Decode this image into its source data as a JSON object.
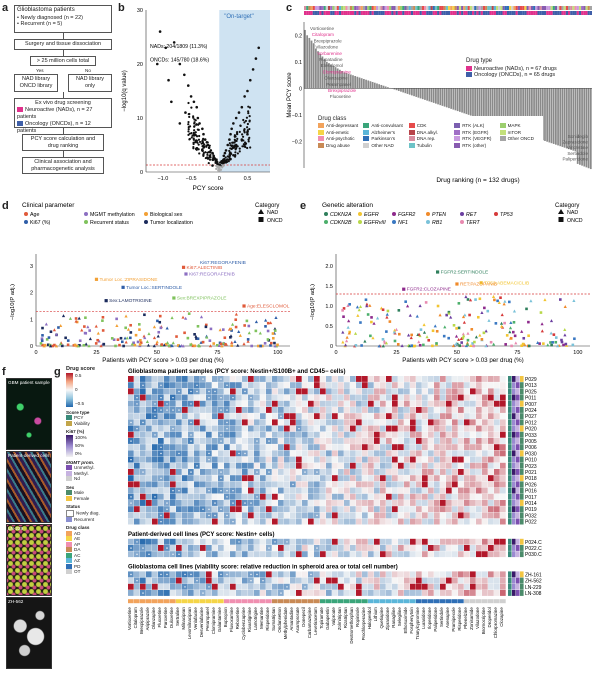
{
  "panel_a": {
    "letter": "a",
    "title": "Glioblastoma patients",
    "bullets": [
      "Newly diagnosed (n = 22)",
      "Recurrent (n = 5)"
    ],
    "step1": "Surgery and tissue dissociation",
    "step2": "> 25 million cells total",
    "yes": "Yes",
    "no": "No",
    "branch_yes": "NAD library ONCD library",
    "branch_no": "NAD library only",
    "screen_title": "Ex vivo drug screening",
    "screen_nad": "Neuroactive (NADs), n = 27 patients",
    "screen_oncd": "Oncology (ONCDs), n = 12 patients",
    "step4": "PCY score calculation and drug ranking",
    "step5": "Clinical association and pharmacogenetic analysis",
    "colors": {
      "nad": "#e0318c",
      "oncd": "#3f5fa8"
    }
  },
  "panel_b": {
    "letter": "b",
    "annotation_nads": "NADs: 204/1809 (11.3%)",
    "annotation_oncds": "ONCDs: 145/780 (18.6%)",
    "on_target": "\"On-target\"",
    "chart_data": {
      "type": "scatter",
      "xlabel": "PCY score",
      "ylabel": "−log10(q value)",
      "xlim": [
        -1.3,
        0.9
      ],
      "ylim": [
        0,
        30
      ],
      "xticks": [
        "−1.0",
        "−0.5",
        "0",
        "0.5"
      ],
      "yticks": [
        "0",
        "10",
        "20",
        "30"
      ],
      "points": [
        [
          -1.05,
          26
        ],
        [
          -0.95,
          23
        ],
        [
          -0.8,
          24
        ],
        [
          -0.7,
          20
        ],
        [
          -0.62,
          18
        ],
        [
          -0.55,
          16
        ],
        [
          -0.5,
          14
        ],
        [
          -0.45,
          13
        ],
        [
          -0.4,
          12
        ],
        [
          -0.38,
          10
        ],
        [
          -0.35,
          9
        ],
        [
          -0.3,
          8
        ],
        [
          -0.28,
          7
        ],
        [
          -0.25,
          6
        ],
        [
          -0.22,
          5.5
        ],
        [
          -0.2,
          5
        ],
        [
          -0.18,
          4.5
        ],
        [
          -0.15,
          4
        ],
        [
          -0.12,
          3.5
        ],
        [
          -0.1,
          3
        ],
        [
          -0.08,
          2.5
        ],
        [
          -0.05,
          2
        ],
        [
          -0.03,
          1.5
        ],
        [
          -0.01,
          1
        ],
        [
          0.02,
          1.2
        ],
        [
          0.05,
          2
        ],
        [
          0.08,
          3
        ],
        [
          0.1,
          3.5
        ],
        [
          0.12,
          4
        ],
        [
          0.15,
          5
        ],
        [
          0.18,
          6
        ],
        [
          0.2,
          7
        ],
        [
          0.22,
          8
        ],
        [
          0.25,
          9
        ],
        [
          0.3,
          10
        ],
        [
          0.35,
          11
        ],
        [
          0.4,
          12
        ],
        [
          0.45,
          14
        ],
        [
          0.5,
          15
        ],
        [
          0.55,
          17
        ],
        [
          0.6,
          19
        ],
        [
          0.65,
          21
        ],
        [
          0.7,
          23
        ],
        [
          -0.6,
          11
        ],
        [
          -0.7,
          9
        ],
        [
          -0.85,
          13
        ],
        [
          -0.9,
          17
        ],
        [
          -1.1,
          20
        ],
        [
          -0.3,
          4
        ],
        [
          -0.2,
          2.5
        ],
        [
          0.3,
          5
        ],
        [
          0.4,
          6
        ],
        [
          0.5,
          7
        ],
        [
          0.1,
          1.8
        ],
        [
          -0.12,
          1.2
        ],
        [
          0.2,
          2.4
        ]
      ],
      "threshold_y": 1.3
    }
  },
  "panel_c": {
    "letter": "c",
    "chart_data": {
      "type": "bar",
      "ylabel": "Mean PCY score",
      "xlabel": "Drug ranking (n = 132 drugs)",
      "ylim": [
        -0.3,
        0.25
      ],
      "yticks": [
        "−0.2",
        "−0.1",
        "0",
        "0.1",
        "0.2"
      ],
      "n_bars": 132,
      "top_values": [
        0.22,
        0.2,
        0.19,
        0.18,
        0.17,
        0.15,
        0.14,
        0.13,
        0.12,
        0.11,
        0.1,
        0.095,
        0.09,
        0.085,
        0.08,
        0.075,
        0.07,
        0.065,
        0.06,
        0.058
      ],
      "labels_top": [
        "Vortioxetine",
        "Citalopram",
        "Brexpiprazole",
        "Vilazodone",
        "Vorbarenine",
        "Rupatadine",
        "Elesclomol",
        "Clomipramine",
        "Olanzapine",
        "Perampanel",
        "Brexpiprazole",
        "Fluoxetine"
      ],
      "labels_bottom": [
        "Sonidegib",
        "Zaprasidone",
        "Vincristine",
        "Sertindole",
        "Paliperidone"
      ]
    },
    "legend_type_title": "Drug type",
    "legend_types": [
      {
        "label": "Neuroactive (NADs), n = 67 drugs",
        "color": "#e0318c"
      },
      {
        "label": "Oncology (ONCDs), n = 65 drugs",
        "color": "#3f5fa8"
      }
    ],
    "drug_class_title": "Drug class",
    "drug_classes": [
      {
        "label": "Anti-depressant",
        "color": "#f2a35c"
      },
      {
        "label": "Anti-convulsant",
        "color": "#3aa57a"
      },
      {
        "label": "CDK",
        "color": "#e64b4b"
      },
      {
        "label": "RTK (ALK)",
        "color": "#7b5fb0"
      },
      {
        "label": "MAPK",
        "color": "#9ccf6e"
      },
      {
        "label": "Anti-emetic",
        "color": "#f5d547"
      },
      {
        "label": "Alzheimer's",
        "color": "#5bb6d9"
      },
      {
        "label": "DNA alkyl.",
        "color": "#b8454b"
      },
      {
        "label": "RTK (EGFR)",
        "color": "#a06fc6"
      },
      {
        "label": "mTOR",
        "color": "#c3e07b"
      },
      {
        "label": "Anti-psychotic",
        "color": "#f08fb0"
      },
      {
        "label": "Parkinson's",
        "color": "#2f6fb6"
      },
      {
        "label": "DNA rep.",
        "color": "#d98da0"
      },
      {
        "label": "RTK (VEGFR)",
        "color": "#c89ae0"
      },
      {
        "label": "Other ONCD",
        "color": "#a5a5a5"
      },
      {
        "label": "Drug abuse",
        "color": "#c98a55"
      },
      {
        "label": "Other NAD",
        "color": "#d0d0d0"
      },
      {
        "label": "Tubulin",
        "color": "#6dc3c7"
      },
      {
        "label": "RTK (other)",
        "color": "#875bb0"
      }
    ]
  },
  "panel_d": {
    "letter": "d",
    "legend_title": "Clinical parameter",
    "params": [
      {
        "label": "Age",
        "color": "#e05a3a"
      },
      {
        "label": "MGMT methylation",
        "color": "#8c6fc2"
      },
      {
        "label": "Biological sex",
        "color": "#f2a035"
      },
      {
        "label": "Ki67 (%)",
        "color": "#2f5ea8"
      },
      {
        "label": "Recurrent status",
        "color": "#7fc25c"
      },
      {
        "label": "Tumor localization",
        "color": "#1b2b5c"
      }
    ],
    "category_title": "Category",
    "cat_nad": "NAD",
    "cat_oncd": "ONCD",
    "annotations": [
      "Ki67:ALECTINIB",
      "Ki67:REGORAFENIB",
      "Tumor Loc.:ZIPRASIDONE",
      "Tumor Loc.:SERTINDOLE",
      "Sex:BREXPIPRAZOLE",
      "Sex:LAMOTRIGINE",
      "Age:ELESCLOMOL"
    ],
    "chart_data": {
      "type": "scatter",
      "xlabel": "Patients with PCY score > 0.03 per drug (%)",
      "ylabel": "−log10(P adj.)",
      "xlim": [
        0,
        105
      ],
      "ylim": [
        0,
        3.3
      ],
      "xticks": [
        "0",
        "25",
        "50",
        "75",
        "100"
      ],
      "yticks": [
        "0",
        "1",
        "2",
        "3"
      ],
      "threshold_y": 1.3,
      "highlights": [
        [
          61,
          2.95
        ],
        [
          62,
          2.7
        ],
        [
          25,
          2.5
        ],
        [
          36,
          2.2
        ],
        [
          57,
          1.8
        ],
        [
          29,
          1.7
        ],
        [
          86,
          1.5
        ]
      ]
    }
  },
  "panel_e": {
    "letter": "e",
    "legend_title": "Genetic alteration",
    "genes": [
      {
        "label": "CDKN2A",
        "color": "#2f7f5c"
      },
      {
        "label": "EGFR",
        "color": "#f2c531"
      },
      {
        "label": "FGFR2",
        "color": "#8e2a8c"
      },
      {
        "label": "PTEN",
        "color": "#f08a2a"
      },
      {
        "label": "RET",
        "color": "#6b3fa0"
      },
      {
        "label": "TP53",
        "color": "#d63a3a"
      },
      {
        "label": "CDKN2B",
        "color": "#4caf6b"
      },
      {
        "label": "EGFRvIII",
        "color": "#b8d84a"
      },
      {
        "label": "NF1",
        "color": "#3a78c2"
      },
      {
        "label": "RB1",
        "color": "#7ac2d9"
      },
      {
        "label": "TERT",
        "color": "#e88ab0"
      }
    ],
    "category_title": "Category",
    "cat_nad": "NAD",
    "cat_oncd": "ONCD",
    "annotations": [
      "FGFR2:SERTINDOLE",
      "TP53:ABEMACICLIB",
      "FGFR2:CLOZAPINE",
      "RET:PAZOPANIB"
    ],
    "chart_data": {
      "type": "scatter",
      "xlabel": "Patients with PCY score > 0.03 per drug (%)",
      "ylabel": "−log10(P adj.)",
      "xlim": [
        0,
        105
      ],
      "ylim": [
        0,
        2.2
      ],
      "xticks": [
        "0",
        "25",
        "50",
        "75",
        "100"
      ],
      "yticks": [
        "0",
        "0.5",
        "1.0",
        "1.5",
        "2.0"
      ],
      "threshold_y": 1.3,
      "highlights": [
        [
          42,
          1.85
        ],
        [
          60,
          1.58
        ],
        [
          28,
          1.42
        ],
        [
          50,
          1.55
        ]
      ]
    }
  },
  "panel_f": {
    "letter": "f",
    "labels": [
      "GBM patient sample",
      "Patient-derived cells",
      "LN-229",
      "ZH-562"
    ]
  },
  "panel_g": {
    "letter": "g",
    "title_patients": "Glioblastoma patient samples (PCY score: Nestin+/S100B+ and CD45− cells)",
    "title_cells": "Patient-derived cell lines (PCY score: Nestin+ cells)",
    "title_lines": "Glioblastoma cell lines (viability score: relative reduction in spheroid area or total cell number)",
    "drug_score_title": "Drug score",
    "drug_score_ticks": [
      "0.5",
      "0",
      "−0.5"
    ],
    "score_type_title": "Score type",
    "score_types": [
      {
        "label": "PCY",
        "color": "#3a8a7a"
      },
      {
        "label": "Viability",
        "color": "#c2a54a"
      }
    ],
    "ki67_title": "Ki67 (%)",
    "ki67_ticks": [
      "100%",
      "50%",
      "0%"
    ],
    "mgmt_title": "MGMT prom.",
    "mgmt": [
      {
        "label": "Unmethyl.",
        "color": "#7c4fb0"
      },
      {
        "label": "Methyl.",
        "color": "#c6b2e0"
      },
      {
        "label": "Nd",
        "color": "#cfcfcf"
      }
    ],
    "sex_title": "Sex",
    "sex": [
      {
        "label": "Male",
        "color": "#4b8b6a"
      },
      {
        "label": "Female",
        "color": "#f2c542"
      }
    ],
    "status_title": "Status",
    "status": [
      {
        "label": "Newly diag.",
        "color": "#ffffff"
      },
      {
        "label": "Recurrent",
        "color": "#8a8fd0"
      }
    ],
    "class_title": "Drug class",
    "classes": [
      {
        "label": "AD",
        "color": "#f2a35c"
      },
      {
        "label": "AE",
        "color": "#f5d547"
      },
      {
        "label": "AP",
        "color": "#f08fb0"
      },
      {
        "label": "DA",
        "color": "#c98a55"
      },
      {
        "label": "AC",
        "color": "#3aa57a"
      },
      {
        "label": "AZ",
        "color": "#5bb6d9"
      },
      {
        "label": "PD",
        "color": "#2f6fb6"
      },
      {
        "label": "OT",
        "color": "#d0d0d0"
      }
    ],
    "patients": [
      "P029",
      "P013",
      "P025",
      "P011",
      "P007",
      "P024",
      "P027",
      "P012",
      "P020",
      "P033",
      "P005",
      "P006",
      "P030",
      "P010",
      "P023",
      "P021",
      "P018",
      "P026",
      "P016",
      "P017",
      "P014",
      "P019",
      "P032",
      "P022"
    ],
    "pdc": [
      "P024.C",
      "P022.C",
      "P030.C"
    ],
    "lines": [
      "ZH-161",
      "ZH-562",
      "LN-229",
      "LN-308"
    ],
    "drugs": [
      "Vortioxetine",
      "Citalopram",
      "Brexpiprazole",
      "Aripiprazole",
      "Olanzapine",
      "Fluoxetine",
      "Paroxetine",
      "Duloxetine",
      "Sertraline",
      "Milnacipran",
      "Levomilnacipran",
      "Venlafaxine",
      "Desvenlafaxine",
      "Perampanel",
      "Clomipramine",
      "Galantamine",
      "Bupropion",
      "Fluvoxamine",
      "Reboxetine",
      "Cyclobenzaprine",
      "Rivastigmine",
      "Lamotrigine",
      "Memantine",
      "Risperidone",
      "Sumatriptan",
      "Ondansetron",
      "Methylphenidate",
      "Amantadine",
      "Acamprosate",
      "Donepezil",
      "Carbamazepine",
      "Levetiracetam",
      "Topiramate",
      "Gabapentin",
      "Valproate",
      "Zolmitriptan",
      "Rizatriptan",
      "Dextromethorphan",
      "Ropinirole",
      "Prochlorperazine",
      "Haloperidol",
      "Lithium",
      "Quetiapine",
      "Ziprasidone",
      "Rasagiline",
      "Selegiline",
      "Ethosuximide",
      "Fosphenytoin",
      "Tranylcypromine",
      "Lurasidone",
      "Iloperidone",
      "Paliperidone",
      "Sertindole",
      "Asenapine",
      "Pramipexole",
      "Risperidone",
      "Phenelzine",
      "Zonisamide",
      "Vilazodone",
      "Bromocriptine",
      "Droperidol",
      "Chlorpromazine",
      "Clozapine"
    ]
  }
}
